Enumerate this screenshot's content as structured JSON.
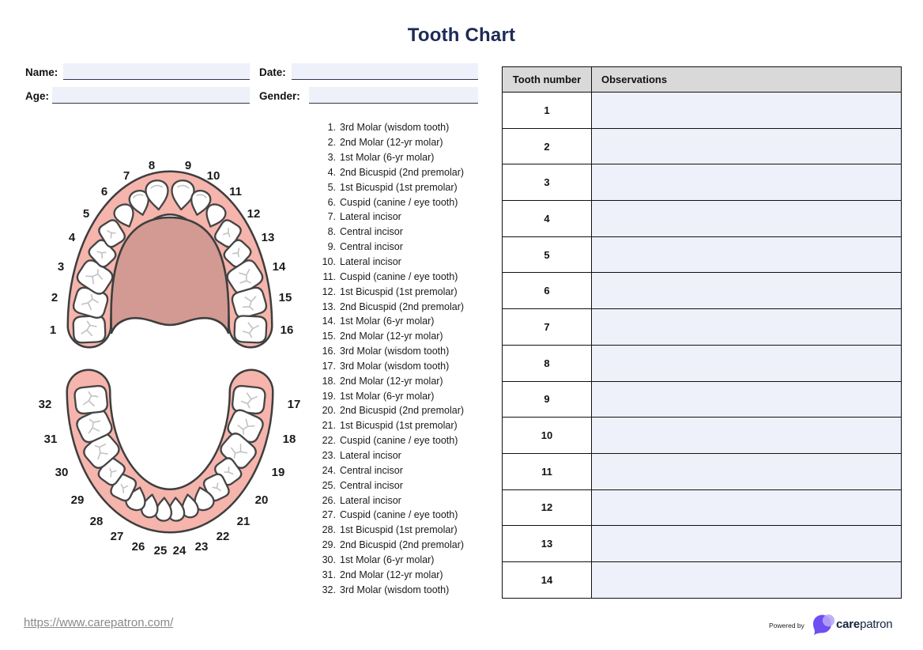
{
  "title": "Tooth Chart",
  "form": {
    "name_label": "Name:",
    "name_value": "",
    "date_label": "Date:",
    "date_value": "",
    "age_label": "Age:",
    "age_value": "",
    "gender_label": "Gender:",
    "gender_value": ""
  },
  "tooth_list": {
    "items": [
      {
        "number": "1.",
        "name": "3rd Molar (wisdom tooth)"
      },
      {
        "number": "2.",
        "name": "2nd Molar (12-yr molar)"
      },
      {
        "number": "3.",
        "name": "1st Molar (6-yr molar)"
      },
      {
        "number": "4.",
        "name": "2nd Bicuspid (2nd premolar)"
      },
      {
        "number": "5.",
        "name": "1st Bicuspid (1st premolar)"
      },
      {
        "number": "6.",
        "name": "Cuspid (canine / eye tooth)"
      },
      {
        "number": "7.",
        "name": "Lateral incisor"
      },
      {
        "number": "8.",
        "name": "Central incisor"
      },
      {
        "number": "9.",
        "name": "Central incisor"
      },
      {
        "number": "10.",
        "name": "Lateral incisor"
      },
      {
        "number": "11.",
        "name": "Cuspid (canine / eye tooth)"
      },
      {
        "number": "12.",
        "name": "1st Bicuspid (1st premolar)"
      },
      {
        "number": "13.",
        "name": "2nd Bicuspid (2nd premolar)"
      },
      {
        "number": "14.",
        "name": "1st Molar (6-yr molar)"
      },
      {
        "number": "15.",
        "name": "2nd Molar (12-yr molar)"
      },
      {
        "number": "16.",
        "name": "3rd Molar (wisdom tooth)"
      },
      {
        "number": "17.",
        "name": "3rd Molar (wisdom tooth)"
      },
      {
        "number": "18.",
        "name": "2nd Molar (12-yr molar)"
      },
      {
        "number": "19.",
        "name": "1st Molar (6-yr molar)"
      },
      {
        "number": "20.",
        "name": "2nd Bicuspid (2nd premolar)"
      },
      {
        "number": "21.",
        "name": "1st Bicuspid (1st premolar)"
      },
      {
        "number": "22.",
        "name": "Cuspid (canine / eye tooth)"
      },
      {
        "number": "23.",
        "name": "Lateral incisor"
      },
      {
        "number": "24.",
        "name": "Central incisor"
      },
      {
        "number": "25.",
        "name": "Central incisor"
      },
      {
        "number": "26.",
        "name": "Lateral incisor"
      },
      {
        "number": "27.",
        "name": "Cuspid (canine / eye tooth)"
      },
      {
        "number": "28.",
        "name": "1st Bicuspid (1st premolar)"
      },
      {
        "number": "29.",
        "name": "2nd Bicuspid (2nd premolar)"
      },
      {
        "number": "30.",
        "name": "1st Molar (6-yr molar)"
      },
      {
        "number": "31.",
        "name": "2nd Molar (12-yr molar)"
      },
      {
        "number": "32.",
        "name": "3rd Molar (wisdom tooth)"
      }
    ]
  },
  "diagram": {
    "upper_tooth_numbers": [
      "1",
      "2",
      "3",
      "4",
      "5",
      "6",
      "7",
      "8",
      "9",
      "10",
      "11",
      "12",
      "13",
      "14",
      "15",
      "16"
    ],
    "lower_tooth_numbers": [
      "17",
      "18",
      "19",
      "20",
      "21",
      "22",
      "23",
      "24",
      "25",
      "26",
      "27",
      "28",
      "29",
      "30",
      "31",
      "32"
    ]
  },
  "table": {
    "col1_header": "Tooth number",
    "col2_header": "Observations",
    "rows": [
      {
        "tooth_number": "1",
        "observation": ""
      },
      {
        "tooth_number": "2",
        "observation": ""
      },
      {
        "tooth_number": "3",
        "observation": ""
      },
      {
        "tooth_number": "4",
        "observation": ""
      },
      {
        "tooth_number": "5",
        "observation": ""
      },
      {
        "tooth_number": "6",
        "observation": ""
      },
      {
        "tooth_number": "7",
        "observation": ""
      },
      {
        "tooth_number": "8",
        "observation": ""
      },
      {
        "tooth_number": "9",
        "observation": ""
      },
      {
        "tooth_number": "10",
        "observation": ""
      },
      {
        "tooth_number": "11",
        "observation": ""
      },
      {
        "tooth_number": "12",
        "observation": ""
      },
      {
        "tooth_number": "13",
        "observation": ""
      },
      {
        "tooth_number": "14",
        "observation": ""
      }
    ]
  },
  "footer": {
    "url": "https://www.carepatron.com/",
    "powered_by_label": "Powered by",
    "brand_care": "care",
    "brand_patron": "patron"
  },
  "colors": {
    "title": "#1e2a56",
    "gum": "#f5b4ac",
    "palate": "#d29a92",
    "outline": "#3e3e3e",
    "tooth_fill": "#ffffff",
    "tooth_stroke": "#454545",
    "fissure": "#c2c2c2",
    "label_text": "#1a1a1a",
    "field_bg": "#eef0fa",
    "table_header_bg": "#d9d9d9",
    "brand_purple": "#6f4ef2",
    "brand_purple_light": "#b7a6f6"
  }
}
